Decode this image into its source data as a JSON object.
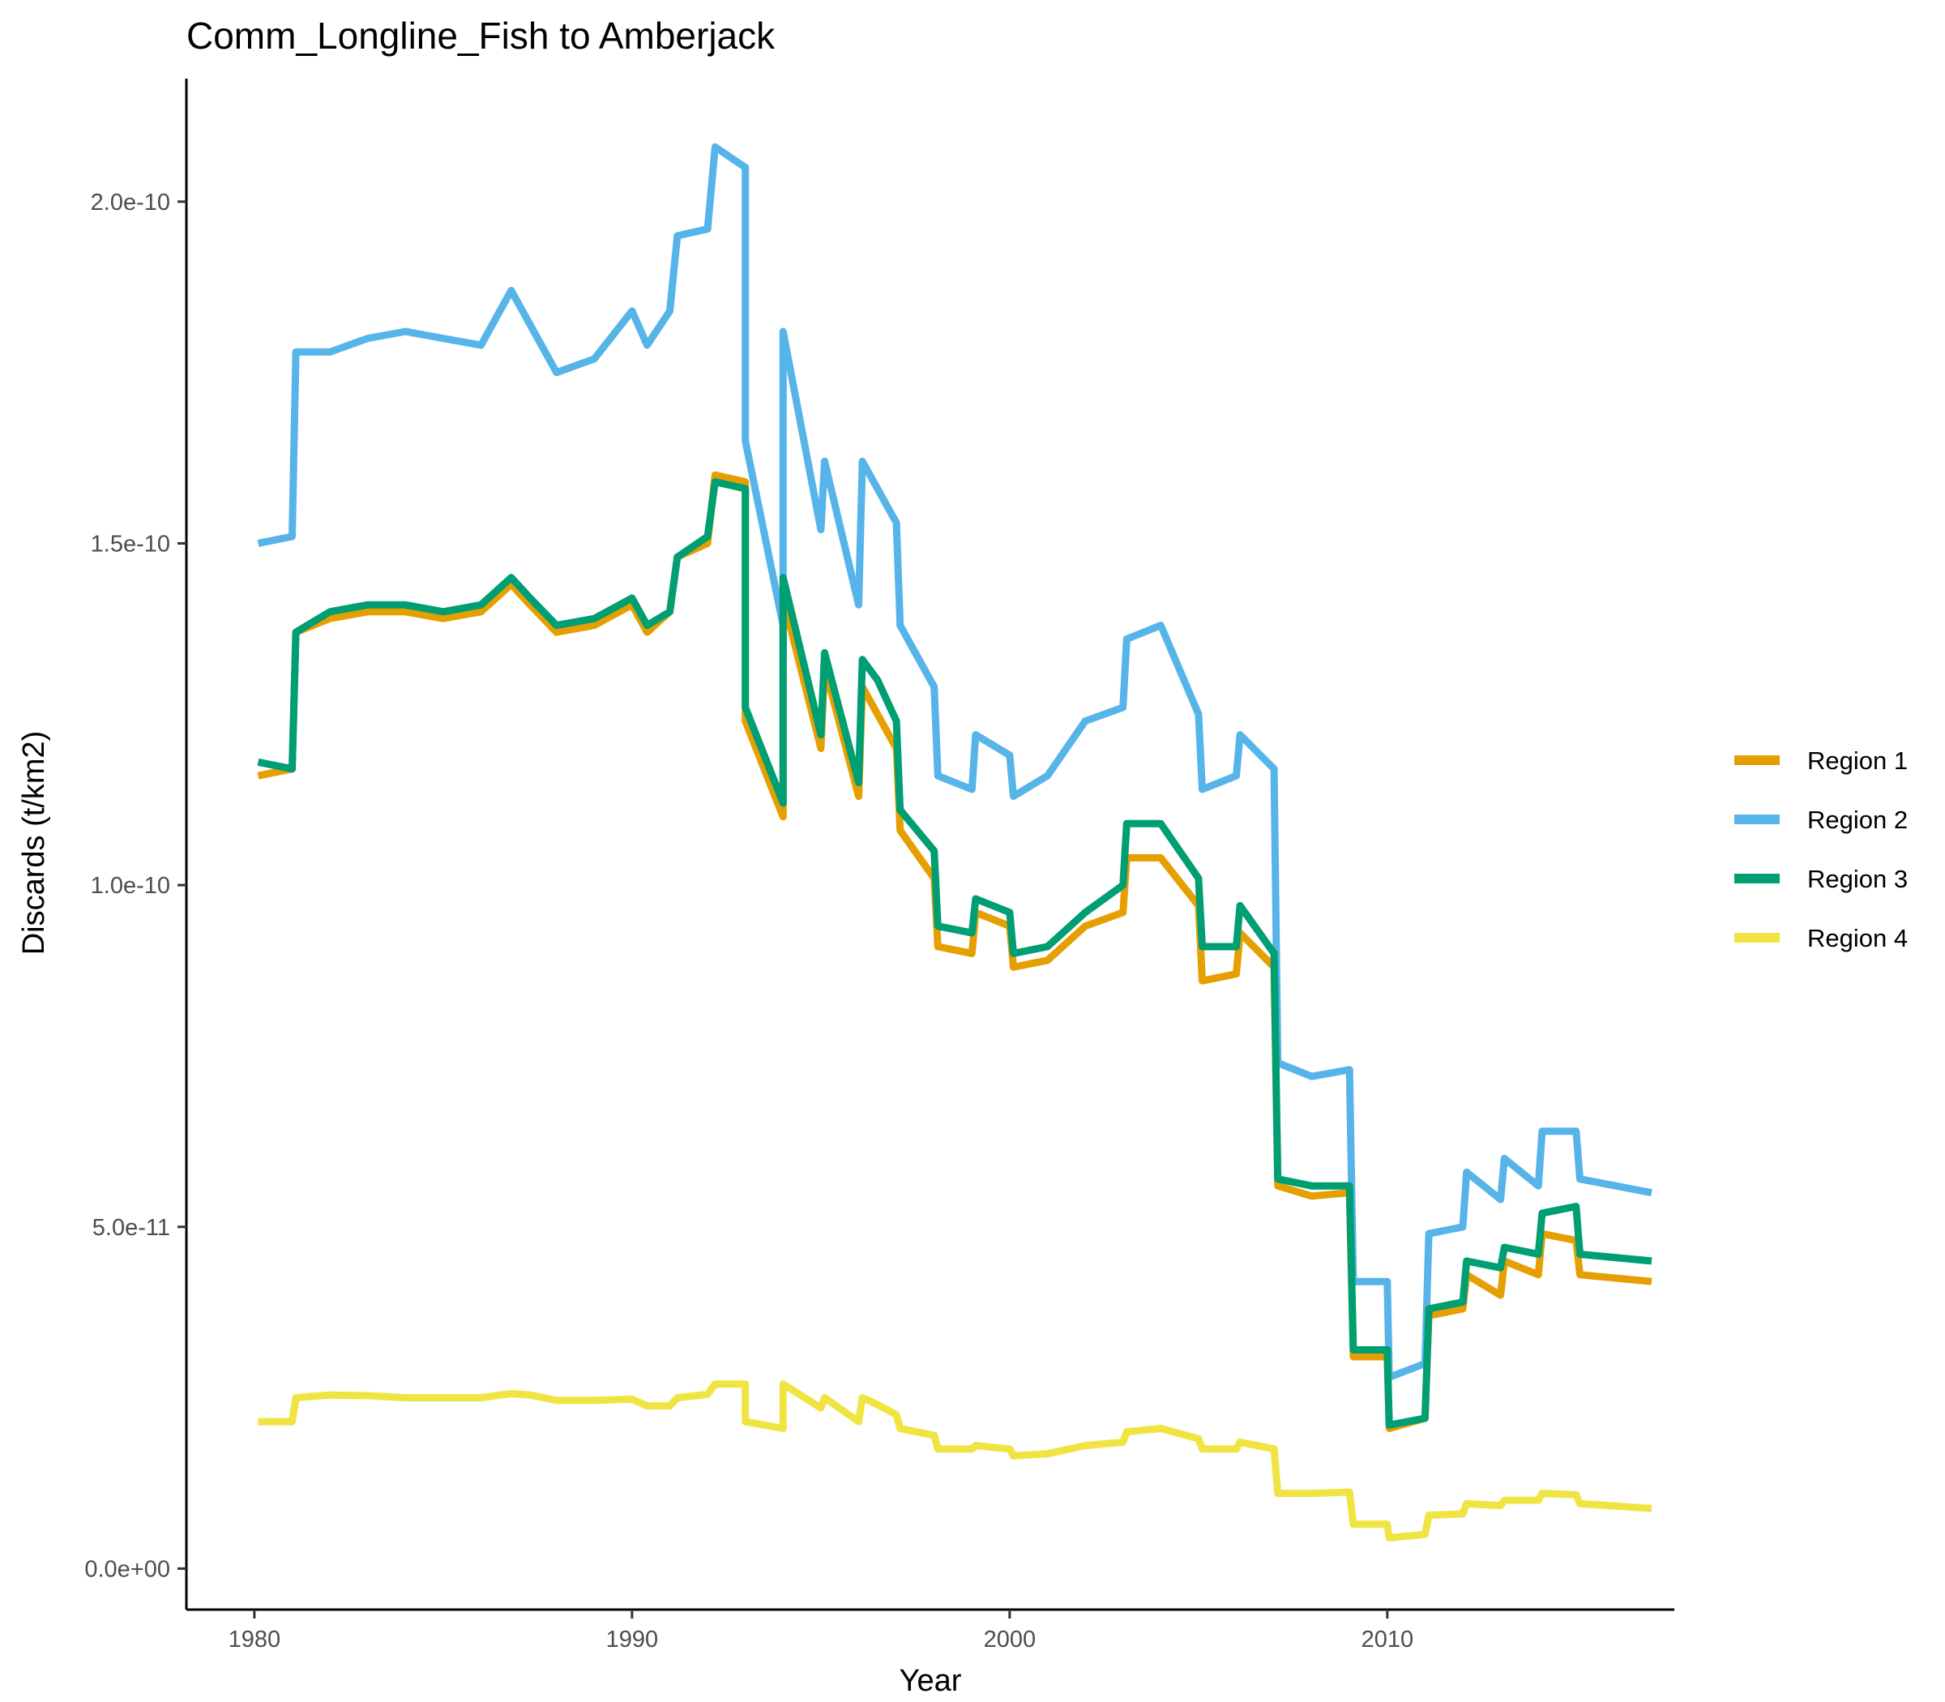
{
  "chart_data": {
    "type": "line",
    "title": "Comm_Longline_Fish to Amberjack",
    "xlabel": "Year",
    "ylabel": "Discards (t/km2)",
    "xlim": [
      1978.2,
      2017.6
    ],
    "ylim": [
      -6e-12,
      2.18e-10
    ],
    "x_ticks": [
      {
        "value": 1980,
        "label": "1980"
      },
      {
        "value": 1990,
        "label": "1990"
      },
      {
        "value": 2000,
        "label": "2000"
      },
      {
        "value": 2010,
        "label": "2010"
      }
    ],
    "y_ticks": [
      {
        "value": 0,
        "label": "0.0e+00"
      },
      {
        "value": 5e-11,
        "label": "5.0e-11"
      },
      {
        "value": 1e-10,
        "label": "1.0e-10"
      },
      {
        "value": 1.5e-10,
        "label": "1.5e-10"
      },
      {
        "value": 2e-10,
        "label": "2.0e-10"
      }
    ],
    "grid": false,
    "legend_position": "right",
    "series": [
      {
        "name": "Region 1",
        "color": "#E69F00",
        "points": [
          [
            1980.1,
            1.16e-10
          ],
          [
            1981.0,
            1.17e-10
          ],
          [
            1981.1,
            1.37e-10
          ],
          [
            1982.0,
            1.39e-10
          ],
          [
            1983.0,
            1.4e-10
          ],
          [
            1984.0,
            1.4e-10
          ],
          [
            1985.0,
            1.39e-10
          ],
          [
            1986.0,
            1.4e-10
          ],
          [
            1986.8,
            1.44e-10
          ],
          [
            1987.3,
            1.41e-10
          ],
          [
            1988.0,
            1.37e-10
          ],
          [
            1989.0,
            1.38e-10
          ],
          [
            1990.0,
            1.41e-10
          ],
          [
            1990.4,
            1.37e-10
          ],
          [
            1991.0,
            1.4e-10
          ],
          [
            1991.2,
            1.48e-10
          ],
          [
            1992.0,
            1.5e-10
          ],
          [
            1992.2,
            1.6e-10
          ],
          [
            1993.0,
            1.59e-10
          ],
          [
            1993.0,
            1.24e-10
          ],
          [
            1994.0,
            1.1e-10
          ],
          [
            1994.0,
            1.42e-10
          ],
          [
            1995.0,
            1.2e-10
          ],
          [
            1995.1,
            1.32e-10
          ],
          [
            1996.0,
            1.13e-10
          ],
          [
            1996.1,
            1.29e-10
          ],
          [
            1996.5,
            1.25e-10
          ],
          [
            1997.0,
            1.2e-10
          ],
          [
            1997.1,
            1.08e-10
          ],
          [
            1998.0,
            1.01e-10
          ],
          [
            1998.1,
            9.1e-11
          ],
          [
            1999.0,
            9e-11
          ],
          [
            1999.1,
            9.6e-11
          ],
          [
            2000.0,
            9.4e-11
          ],
          [
            2000.1,
            8.8e-11
          ],
          [
            2001.0,
            8.9e-11
          ],
          [
            2002.0,
            9.4e-11
          ],
          [
            2003.0,
            9.6e-11
          ],
          [
            2003.1,
            1.04e-10
          ],
          [
            2004.0,
            1.04e-10
          ],
          [
            2005.0,
            9.7e-11
          ],
          [
            2005.1,
            8.6e-11
          ],
          [
            2006.0,
            8.7e-11
          ],
          [
            2006.1,
            9.3e-11
          ],
          [
            2007.0,
            8.8e-11
          ],
          [
            2007.1,
            5.6e-11
          ],
          [
            2008.0,
            5.45e-11
          ],
          [
            2009.0,
            5.5e-11
          ],
          [
            2009.1,
            3.1e-11
          ],
          [
            2010.0,
            3.1e-11
          ],
          [
            2010.05,
            2.05e-11
          ],
          [
            2011.0,
            2.2e-11
          ],
          [
            2011.1,
            3.7e-11
          ],
          [
            2012.0,
            3.8e-11
          ],
          [
            2012.1,
            4.3e-11
          ],
          [
            2013.0,
            4e-11
          ],
          [
            2013.1,
            4.5e-11
          ],
          [
            2014.0,
            4.3e-11
          ],
          [
            2014.1,
            4.9e-11
          ],
          [
            2015.0,
            4.8e-11
          ],
          [
            2015.1,
            4.3e-11
          ],
          [
            2017.0,
            4.2e-11
          ]
        ]
      },
      {
        "name": "Region 2",
        "color": "#56B4E9",
        "points": [
          [
            1980.1,
            1.5e-10
          ],
          [
            1981.0,
            1.51e-10
          ],
          [
            1981.1,
            1.78e-10
          ],
          [
            1982.0,
            1.78e-10
          ],
          [
            1983.0,
            1.8e-10
          ],
          [
            1984.0,
            1.81e-10
          ],
          [
            1985.0,
            1.8e-10
          ],
          [
            1986.0,
            1.79e-10
          ],
          [
            1986.8,
            1.87e-10
          ],
          [
            1987.3,
            1.82e-10
          ],
          [
            1988.0,
            1.75e-10
          ],
          [
            1989.0,
            1.77e-10
          ],
          [
            1990.0,
            1.84e-10
          ],
          [
            1990.4,
            1.79e-10
          ],
          [
            1991.0,
            1.84e-10
          ],
          [
            1991.2,
            1.95e-10
          ],
          [
            1992.0,
            1.96e-10
          ],
          [
            1992.2,
            2.08e-10
          ],
          [
            1993.0,
            2.05e-10
          ],
          [
            1993.0,
            1.65e-10
          ],
          [
            1994.0,
            1.38e-10
          ],
          [
            1994.0,
            1.81e-10
          ],
          [
            1995.0,
            1.52e-10
          ],
          [
            1995.1,
            1.62e-10
          ],
          [
            1996.0,
            1.41e-10
          ],
          [
            1996.1,
            1.62e-10
          ],
          [
            1996.5,
            1.58e-10
          ],
          [
            1997.0,
            1.53e-10
          ],
          [
            1997.1,
            1.38e-10
          ],
          [
            1998.0,
            1.29e-10
          ],
          [
            1998.1,
            1.16e-10
          ],
          [
            1999.0,
            1.14e-10
          ],
          [
            1999.1,
            1.22e-10
          ],
          [
            2000.0,
            1.19e-10
          ],
          [
            2000.1,
            1.13e-10
          ],
          [
            2001.0,
            1.16e-10
          ],
          [
            2002.0,
            1.24e-10
          ],
          [
            2003.0,
            1.26e-10
          ],
          [
            2003.1,
            1.36e-10
          ],
          [
            2004.0,
            1.38e-10
          ],
          [
            2005.0,
            1.25e-10
          ],
          [
            2005.1,
            1.14e-10
          ],
          [
            2006.0,
            1.16e-10
          ],
          [
            2006.1,
            1.22e-10
          ],
          [
            2007.0,
            1.17e-10
          ],
          [
            2007.1,
            7.4e-11
          ],
          [
            2008.0,
            7.2e-11
          ],
          [
            2009.0,
            7.3e-11
          ],
          [
            2009.1,
            4.2e-11
          ],
          [
            2010.0,
            4.2e-11
          ],
          [
            2010.05,
            2.8e-11
          ],
          [
            2011.0,
            3e-11
          ],
          [
            2011.1,
            4.9e-11
          ],
          [
            2012.0,
            5e-11
          ],
          [
            2012.1,
            5.8e-11
          ],
          [
            2013.0,
            5.4e-11
          ],
          [
            2013.1,
            6e-11
          ],
          [
            2014.0,
            5.6e-11
          ],
          [
            2014.1,
            6.4e-11
          ],
          [
            2015.0,
            6.4e-11
          ],
          [
            2015.1,
            5.7e-11
          ],
          [
            2017.0,
            5.5e-11
          ]
        ]
      },
      {
        "name": "Region 3",
        "color": "#009E73",
        "points": [
          [
            1980.1,
            1.18e-10
          ],
          [
            1981.0,
            1.17e-10
          ],
          [
            1981.1,
            1.37e-10
          ],
          [
            1982.0,
            1.4e-10
          ],
          [
            1983.0,
            1.41e-10
          ],
          [
            1984.0,
            1.41e-10
          ],
          [
            1985.0,
            1.4e-10
          ],
          [
            1986.0,
            1.41e-10
          ],
          [
            1986.8,
            1.45e-10
          ],
          [
            1987.3,
            1.42e-10
          ],
          [
            1988.0,
            1.38e-10
          ],
          [
            1989.0,
            1.39e-10
          ],
          [
            1990.0,
            1.42e-10
          ],
          [
            1990.4,
            1.38e-10
          ],
          [
            1991.0,
            1.4e-10
          ],
          [
            1991.2,
            1.48e-10
          ],
          [
            1992.0,
            1.51e-10
          ],
          [
            1992.2,
            1.59e-10
          ],
          [
            1993.0,
            1.58e-10
          ],
          [
            1993.0,
            1.26e-10
          ],
          [
            1994.0,
            1.12e-10
          ],
          [
            1994.0,
            1.45e-10
          ],
          [
            1995.0,
            1.22e-10
          ],
          [
            1995.1,
            1.34e-10
          ],
          [
            1996.0,
            1.15e-10
          ],
          [
            1996.1,
            1.33e-10
          ],
          [
            1996.5,
            1.3e-10
          ],
          [
            1997.0,
            1.24e-10
          ],
          [
            1997.1,
            1.11e-10
          ],
          [
            1998.0,
            1.05e-10
          ],
          [
            1998.1,
            9.4e-11
          ],
          [
            1999.0,
            9.3e-11
          ],
          [
            1999.1,
            9.8e-11
          ],
          [
            2000.0,
            9.6e-11
          ],
          [
            2000.1,
            9e-11
          ],
          [
            2001.0,
            9.1e-11
          ],
          [
            2002.0,
            9.6e-11
          ],
          [
            2003.0,
            1e-10
          ],
          [
            2003.1,
            1.09e-10
          ],
          [
            2004.0,
            1.09e-10
          ],
          [
            2005.0,
            1.01e-10
          ],
          [
            2005.1,
            9.1e-11
          ],
          [
            2006.0,
            9.1e-11
          ],
          [
            2006.1,
            9.7e-11
          ],
          [
            2007.0,
            9e-11
          ],
          [
            2007.1,
            5.7e-11
          ],
          [
            2008.0,
            5.6e-11
          ],
          [
            2009.0,
            5.6e-11
          ],
          [
            2009.1,
            3.2e-11
          ],
          [
            2010.0,
            3.2e-11
          ],
          [
            2010.05,
            2.1e-11
          ],
          [
            2011.0,
            2.2e-11
          ],
          [
            2011.1,
            3.8e-11
          ],
          [
            2012.0,
            3.9e-11
          ],
          [
            2012.1,
            4.5e-11
          ],
          [
            2013.0,
            4.4e-11
          ],
          [
            2013.1,
            4.7e-11
          ],
          [
            2014.0,
            4.6e-11
          ],
          [
            2014.1,
            5.2e-11
          ],
          [
            2015.0,
            5.3e-11
          ],
          [
            2015.1,
            4.6e-11
          ],
          [
            2017.0,
            4.5e-11
          ]
        ]
      },
      {
        "name": "Region 4",
        "color": "#F0E442",
        "points": [
          [
            1980.1,
            2.15e-11
          ],
          [
            1981.0,
            2.15e-11
          ],
          [
            1981.1,
            2.5e-11
          ],
          [
            1982.0,
            2.54e-11
          ],
          [
            1983.0,
            2.53e-11
          ],
          [
            1984.0,
            2.5e-11
          ],
          [
            1985.0,
            2.5e-11
          ],
          [
            1986.0,
            2.5e-11
          ],
          [
            1986.8,
            2.56e-11
          ],
          [
            1987.3,
            2.54e-11
          ],
          [
            1988.0,
            2.46e-11
          ],
          [
            1989.0,
            2.46e-11
          ],
          [
            1990.0,
            2.48e-11
          ],
          [
            1990.4,
            2.38e-11
          ],
          [
            1991.0,
            2.38e-11
          ],
          [
            1991.2,
            2.5e-11
          ],
          [
            1992.0,
            2.55e-11
          ],
          [
            1992.2,
            2.7e-11
          ],
          [
            1993.0,
            2.7e-11
          ],
          [
            1993.0,
            2.15e-11
          ],
          [
            1994.0,
            2.05e-11
          ],
          [
            1994.0,
            2.7e-11
          ],
          [
            1995.0,
            2.35e-11
          ],
          [
            1995.1,
            2.5e-11
          ],
          [
            1996.0,
            2.15e-11
          ],
          [
            1996.1,
            2.5e-11
          ],
          [
            1996.5,
            2.4e-11
          ],
          [
            1997.0,
            2.25e-11
          ],
          [
            1997.1,
            2.05e-11
          ],
          [
            1998.0,
            1.95e-11
          ],
          [
            1998.1,
            1.75e-11
          ],
          [
            1999.0,
            1.75e-11
          ],
          [
            1999.1,
            1.8e-11
          ],
          [
            2000.0,
            1.75e-11
          ],
          [
            2000.1,
            1.65e-11
          ],
          [
            2001.0,
            1.68e-11
          ],
          [
            2002.0,
            1.8e-11
          ],
          [
            2003.0,
            1.85e-11
          ],
          [
            2003.1,
            2e-11
          ],
          [
            2004.0,
            2.05e-11
          ],
          [
            2005.0,
            1.9e-11
          ],
          [
            2005.1,
            1.75e-11
          ],
          [
            2006.0,
            1.75e-11
          ],
          [
            2006.1,
            1.85e-11
          ],
          [
            2007.0,
            1.75e-11
          ],
          [
            2007.1,
            1.1e-11
          ],
          [
            2008.0,
            1.1e-11
          ],
          [
            2009.0,
            1.12e-11
          ],
          [
            2009.1,
            6.5e-12
          ],
          [
            2010.0,
            6.5e-12
          ],
          [
            2010.05,
            4.5e-12
          ],
          [
            2011.0,
            5e-12
          ],
          [
            2011.1,
            7.8e-12
          ],
          [
            2012.0,
            8e-12
          ],
          [
            2012.1,
            9.5e-12
          ],
          [
            2013.0,
            9.2e-12
          ],
          [
            2013.1,
            1e-11
          ],
          [
            2014.0,
            1e-11
          ],
          [
            2014.1,
            1.1e-11
          ],
          [
            2015.0,
            1.08e-11
          ],
          [
            2015.1,
            9.5e-12
          ],
          [
            2017.0,
            8.8e-12
          ]
        ]
      }
    ]
  }
}
